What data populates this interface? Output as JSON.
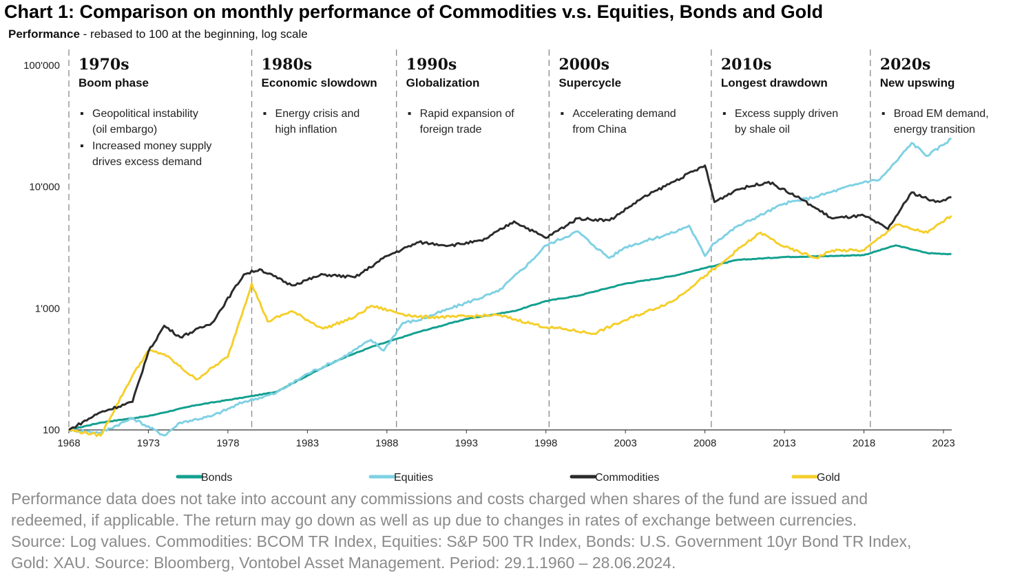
{
  "title": "Chart 1: Comparison on monthly performance of Commodities v.s. Equities, Bonds and Gold",
  "subtitle_bold": "Performance",
  "subtitle_rest": " - rebased to 100 at the beginning, log scale",
  "footnote": [
    "Performance data does not take into account any commissions and costs charged when shares of the fund are issued and",
    "redeemed, if applicable. The return may go down as well as up due to changes in rates of exchange between currencies.",
    "Source: Log values. Commodities: BCOM TR Index, Equities: S&P 500 TR Index, Bonds: U.S. Government 10yr Bond TR Index,",
    "Gold: XAU. Source: Bloomberg, Vontobel Asset Management. Period: 29.1.1960 – 28.06.2024."
  ],
  "chart_data": {
    "type": "line",
    "title": "Chart 1: Comparison on monthly performance of Commodities v.s. Equities, Bonds and Gold",
    "ylabel": "Performance - rebased to 100 at the beginning, log scale",
    "yscale": "log",
    "ylim": [
      100,
      100000
    ],
    "xlim": [
      1968,
      2024
    ],
    "y_ticks": [
      100,
      1000,
      10000,
      100000
    ],
    "y_tick_labels": [
      "100",
      "1'000",
      "10'000",
      "100'000"
    ],
    "x_ticks": [
      1968,
      1973,
      1978,
      1983,
      1988,
      1993,
      1998,
      2003,
      2008,
      2013,
      2018,
      2023
    ],
    "x_tick_labels": [
      "1968",
      "1973",
      "1978",
      "1983",
      "1988",
      "1993",
      "1998",
      "2003",
      "2008",
      "2013",
      "2018",
      "2023"
    ],
    "legend_position": "bottom",
    "eras": [
      {
        "name": "1970s",
        "subtitle": "Boom phase",
        "start": 1968,
        "bullets": [
          [
            "Geopolitical instability",
            "(oil embargo)"
          ],
          [
            "Increased money supply",
            "drives excess demand"
          ]
        ]
      },
      {
        "name": "1980s",
        "subtitle": "Economic slowdown",
        "start": 1979.5,
        "bullets": [
          [
            "Energy crisis and",
            "high inflation"
          ]
        ]
      },
      {
        "name": "1990s",
        "subtitle": "Globalization",
        "start": 1988.6,
        "bullets": [
          [
            "Rapid expansion of",
            "foreign trade"
          ]
        ]
      },
      {
        "name": "2000s",
        "subtitle": "Supercycle",
        "start": 1998.2,
        "bullets": [
          [
            "Accelerating demand",
            "from China"
          ]
        ]
      },
      {
        "name": "2010s",
        "subtitle": "Longest drawdown",
        "start": 2008.4,
        "bullets": [
          [
            "Excess supply driven",
            "by shale oil"
          ]
        ]
      },
      {
        "name": "2020s",
        "subtitle": "New upswing",
        "start": 2018.4,
        "bullets": [
          [
            "Broad EM demand,",
            "energy transition"
          ]
        ]
      }
    ],
    "series": [
      {
        "name": "Bonds",
        "color": "#13a08f",
        "x": [
          1968,
          1970,
          1973,
          1976,
          1979,
          1981,
          1983,
          1985,
          1987,
          1990,
          1993,
          1996,
          1998,
          2000,
          2003,
          2006,
          2008,
          2010,
          2013,
          2016,
          2018,
          2020,
          2022,
          2023.5
        ],
        "y": [
          100,
          115,
          130,
          160,
          185,
          205,
          280,
          380,
          480,
          640,
          820,
          950,
          1150,
          1270,
          1600,
          1850,
          2150,
          2500,
          2650,
          2700,
          2750,
          3300,
          2850,
          2800
        ]
      },
      {
        "name": "Equities",
        "color": "#7fd1e3",
        "x": [
          1968,
          1970,
          1972,
          1974,
          1975,
          1977,
          1979,
          1981,
          1983,
          1985,
          1987,
          1987.8,
          1989,
          1990,
          1992,
          1995,
          1997,
          1998,
          2000,
          2001,
          2002,
          2003,
          2006,
          2007,
          2008,
          2008.5,
          2010,
          2013,
          2015,
          2018,
          2019,
          2020,
          2021,
          2022,
          2023.5
        ],
        "y": [
          100,
          95,
          125,
          90,
          115,
          130,
          170,
          200,
          290,
          380,
          550,
          450,
          760,
          800,
          1000,
          1380,
          2400,
          3300,
          4300,
          3300,
          2600,
          3200,
          4200,
          4800,
          2700,
          3400,
          4700,
          7300,
          8300,
          11000,
          11500,
          16000,
          23000,
          18000,
          25000
        ]
      },
      {
        "name": "Commodities",
        "color": "#2b2b2b",
        "x": [
          1968,
          1970,
          1972,
          1973,
          1974,
          1975,
          1977,
          1979,
          1980,
          1982,
          1984,
          1986,
          1988,
          1990,
          1992,
          1994,
          1996,
          1998,
          2000,
          2002,
          2004,
          2006,
          2008,
          2008.6,
          2010,
          2012,
          2014,
          2016,
          2018,
          2019.5,
          2021,
          2022.5,
          2023.5
        ],
        "y": [
          100,
          140,
          170,
          440,
          720,
          580,
          760,
          1900,
          2100,
          1550,
          1900,
          1800,
          2700,
          3500,
          3300,
          3600,
          5200,
          3800,
          5500,
          5300,
          8000,
          11000,
          15000,
          7500,
          9500,
          11000,
          8000,
          5500,
          5800,
          4500,
          9000,
          7500,
          8200
        ]
      },
      {
        "name": "Gold",
        "color": "#f5cf2c",
        "x": [
          1968,
          1970,
          1972,
          1973,
          1974,
          1976,
          1978,
          1979.5,
          1980.5,
          1982,
          1984,
          1986,
          1987,
          1989,
          1990,
          1992,
          1995,
          1998,
          1999,
          2001,
          2003,
          2006,
          2008,
          2009,
          2010,
          2011.5,
          2013,
          2015,
          2016,
          2018,
          2020,
          2021,
          2022,
          2023.5
        ],
        "y": [
          100,
          90,
          280,
          450,
          420,
          260,
          400,
          1600,
          780,
          950,
          680,
          850,
          1050,
          900,
          850,
          850,
          880,
          700,
          680,
          620,
          800,
          1150,
          1850,
          2300,
          3000,
          4200,
          3200,
          2600,
          3000,
          3000,
          4900,
          4500,
          4200,
          5800
        ]
      }
    ]
  }
}
